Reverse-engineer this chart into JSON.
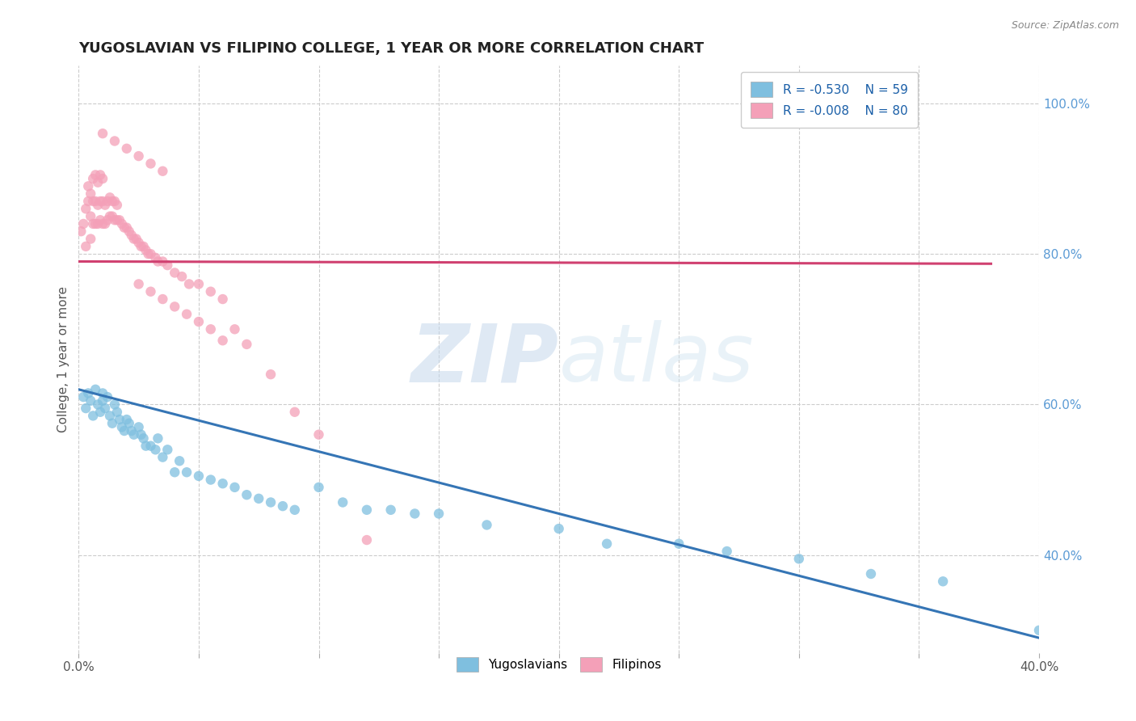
{
  "title": "YUGOSLAVIAN VS FILIPINO COLLEGE, 1 YEAR OR MORE CORRELATION CHART",
  "source": "Source: ZipAtlas.com",
  "ylabel": "College, 1 year or more",
  "xlim": [
    0.0,
    0.4
  ],
  "ylim": [
    0.27,
    1.05
  ],
  "xticks": [
    0.0,
    0.05,
    0.1,
    0.15,
    0.2,
    0.25,
    0.3,
    0.35,
    0.4
  ],
  "xtick_labels": [
    "0.0%",
    "",
    "",
    "",
    "",
    "",
    "",
    "",
    "40.0%"
  ],
  "ytick_labels_right": [
    "100.0%",
    "80.0%",
    "60.0%",
    "40.0%"
  ],
  "yticks_right": [
    1.0,
    0.8,
    0.6,
    0.4
  ],
  "legend_r1": "R = -0.530",
  "legend_n1": "N = 59",
  "legend_r2": "R = -0.008",
  "legend_n2": "N = 80",
  "blue_color": "#7fbfdf",
  "pink_color": "#f4a0b8",
  "blue_line_color": "#3575b5",
  "pink_line_color": "#d04070",
  "watermark_zip": "ZIP",
  "watermark_atlas": "atlas",
  "background_color": "#ffffff",
  "grid_color": "#cccccc",
  "blue_scatter_x": [
    0.002,
    0.003,
    0.004,
    0.005,
    0.006,
    0.007,
    0.008,
    0.009,
    0.01,
    0.01,
    0.011,
    0.012,
    0.013,
    0.014,
    0.015,
    0.016,
    0.017,
    0.018,
    0.019,
    0.02,
    0.021,
    0.022,
    0.023,
    0.025,
    0.026,
    0.027,
    0.028,
    0.03,
    0.032,
    0.033,
    0.035,
    0.037,
    0.04,
    0.042,
    0.045,
    0.05,
    0.055,
    0.06,
    0.065,
    0.07,
    0.075,
    0.08,
    0.085,
    0.09,
    0.1,
    0.11,
    0.12,
    0.13,
    0.14,
    0.15,
    0.17,
    0.2,
    0.22,
    0.25,
    0.27,
    0.3,
    0.33,
    0.36,
    0.4
  ],
  "blue_scatter_y": [
    0.61,
    0.595,
    0.615,
    0.605,
    0.585,
    0.62,
    0.6,
    0.59,
    0.615,
    0.605,
    0.595,
    0.61,
    0.585,
    0.575,
    0.6,
    0.59,
    0.58,
    0.57,
    0.565,
    0.58,
    0.575,
    0.565,
    0.56,
    0.57,
    0.56,
    0.555,
    0.545,
    0.545,
    0.54,
    0.555,
    0.53,
    0.54,
    0.51,
    0.525,
    0.51,
    0.505,
    0.5,
    0.495,
    0.49,
    0.48,
    0.475,
    0.47,
    0.465,
    0.46,
    0.49,
    0.47,
    0.46,
    0.46,
    0.455,
    0.455,
    0.44,
    0.435,
    0.415,
    0.415,
    0.405,
    0.395,
    0.375,
    0.365,
    0.3
  ],
  "pink_scatter_x": [
    0.001,
    0.002,
    0.003,
    0.003,
    0.004,
    0.004,
    0.005,
    0.005,
    0.005,
    0.006,
    0.006,
    0.006,
    0.007,
    0.007,
    0.007,
    0.008,
    0.008,
    0.008,
    0.009,
    0.009,
    0.009,
    0.01,
    0.01,
    0.01,
    0.011,
    0.011,
    0.012,
    0.012,
    0.013,
    0.013,
    0.014,
    0.014,
    0.015,
    0.015,
    0.016,
    0.016,
    0.017,
    0.018,
    0.019,
    0.02,
    0.021,
    0.022,
    0.023,
    0.024,
    0.025,
    0.026,
    0.027,
    0.028,
    0.029,
    0.03,
    0.032,
    0.033,
    0.035,
    0.037,
    0.04,
    0.043,
    0.046,
    0.05,
    0.055,
    0.06,
    0.065,
    0.07,
    0.08,
    0.09,
    0.1,
    0.12,
    0.025,
    0.03,
    0.035,
    0.04,
    0.045,
    0.05,
    0.055,
    0.06,
    0.01,
    0.015,
    0.02,
    0.025,
    0.03,
    0.035
  ],
  "pink_scatter_y": [
    0.83,
    0.84,
    0.81,
    0.86,
    0.87,
    0.89,
    0.82,
    0.85,
    0.88,
    0.84,
    0.87,
    0.9,
    0.84,
    0.87,
    0.905,
    0.84,
    0.865,
    0.895,
    0.845,
    0.87,
    0.905,
    0.84,
    0.87,
    0.9,
    0.84,
    0.865,
    0.845,
    0.87,
    0.85,
    0.875,
    0.85,
    0.87,
    0.845,
    0.87,
    0.845,
    0.865,
    0.845,
    0.84,
    0.835,
    0.835,
    0.83,
    0.825,
    0.82,
    0.82,
    0.815,
    0.81,
    0.81,
    0.805,
    0.8,
    0.8,
    0.795,
    0.79,
    0.79,
    0.785,
    0.775,
    0.77,
    0.76,
    0.76,
    0.75,
    0.74,
    0.7,
    0.68,
    0.64,
    0.59,
    0.56,
    0.42,
    0.76,
    0.75,
    0.74,
    0.73,
    0.72,
    0.71,
    0.7,
    0.685,
    0.96,
    0.95,
    0.94,
    0.93,
    0.92,
    0.91
  ],
  "blue_trend_x": [
    0.0,
    0.4
  ],
  "blue_trend_y": [
    0.62,
    0.29
  ],
  "pink_trend_x": [
    0.0,
    0.38
  ],
  "pink_trend_y": [
    0.79,
    0.787
  ]
}
